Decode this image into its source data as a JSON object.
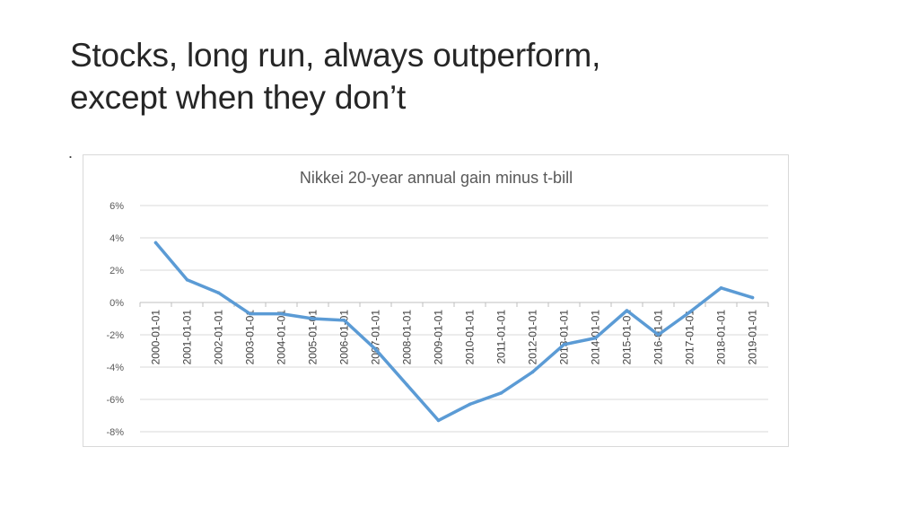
{
  "slide": {
    "title_line1": "Stocks, long run,  always outperform,",
    "title_line2": "except when they don’t",
    "bullet": "."
  },
  "chart_data": {
    "type": "line",
    "title": "Nikkei 20-year annual gain minus t-bill",
    "xlabel": "",
    "ylabel": "",
    "x": [
      "2000-01-01",
      "2001-01-01",
      "2002-01-01",
      "2003-01-01",
      "2004-01-01",
      "2005-01-01",
      "2006-01-01",
      "2007-01-01",
      "2008-01-01",
      "2009-01-01",
      "2010-01-01",
      "2011-01-01",
      "2012-01-01",
      "2013-01-01",
      "2014-01-01",
      "2015-01-01",
      "2016-01-01",
      "2017-01-01",
      "2018-01-01",
      "2019-01-01"
    ],
    "series": [
      {
        "values": [
          3.7,
          1.4,
          0.6,
          -0.7,
          -0.7,
          -1.0,
          -1.1,
          -2.9,
          -5.1,
          -7.3,
          -6.3,
          -5.6,
          -4.3,
          -2.6,
          -2.2,
          -0.5,
          -2.0,
          -0.6,
          0.9,
          0.3
        ],
        "color": "#5b9bd5"
      }
    ],
    "ylim": [
      -8,
      6
    ],
    "yticks": [
      6,
      4,
      2,
      0,
      -2,
      -4,
      -6,
      -8
    ],
    "ytick_labels": [
      "6%",
      "4%",
      "2%",
      "0%",
      "-2%",
      "-4%",
      "-6%",
      "-8%"
    ],
    "grid": true,
    "legend": "none",
    "colors": {
      "line": "#5b9bd5",
      "grid": "#d9d9d9",
      "text": "#595959"
    }
  }
}
